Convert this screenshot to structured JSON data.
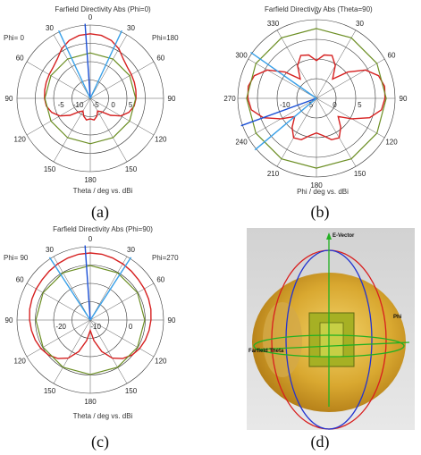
{
  "chart_data": [
    {
      "type": "polar",
      "panel": "a",
      "title": "Farfield Directivity Abs (Phi=0)",
      "axis_label": "Theta / deg vs. dBi",
      "left_label": "Phi=  0",
      "right_label": "Phi=180",
      "angle_labels": [
        "0",
        "30",
        "60",
        "90",
        "120",
        "150",
        "180",
        "150",
        "120",
        "90",
        "60",
        "30"
      ],
      "radial_labels": [
        "-5",
        "-10",
        "-5",
        "0",
        "5"
      ],
      "series": [
        {
          "color": "#d62020",
          "theta_deg": [
            0,
            10,
            20,
            30,
            40,
            50,
            60,
            70,
            80,
            90,
            100,
            110,
            120,
            130,
            140,
            150,
            160,
            170,
            180
          ],
          "values": [
            7.0,
            6.8,
            6.0,
            4.5,
            2.5,
            1.5,
            1.2,
            1.0,
            0.8,
            0.6,
            0.2,
            -1.0,
            -3.0,
            -6.0,
            -9.0,
            -10.0,
            -8.5,
            -7.5,
            -8.0
          ]
        },
        {
          "color": "#6b8e23",
          "theta_deg": [
            0,
            30,
            60,
            90,
            120,
            150,
            180,
            210,
            240,
            270,
            300,
            330,
            360
          ],
          "values": [
            0.5,
            0.5,
            0.5,
            0.5,
            0.5,
            0.5,
            0.5,
            0.5,
            0.5,
            0.5,
            0.5,
            0.5,
            0.5
          ]
        }
      ],
      "markers": [
        {
          "color": "#1a4fd6",
          "angle_deg": -4
        },
        {
          "color": "#39a0e8",
          "angle_deg": -25
        },
        {
          "color": "#39a0e8",
          "angle_deg": 25
        }
      ]
    },
    {
      "type": "polar",
      "panel": "b",
      "title": "Farfield Directivity Abs (Theta=90)",
      "axis_label": "Phi / deg vs. dBi",
      "angle_labels": [
        "0",
        "30",
        "60",
        "90",
        "120",
        "150",
        "180",
        "210",
        "240",
        "270",
        "300",
        "330"
      ],
      "radial_labels": [
        "-10",
        "-5",
        "0",
        "5"
      ],
      "series": [
        {
          "color": "#d62020",
          "theta_deg": [
            0,
            10,
            20,
            30,
            40,
            50,
            60,
            70,
            80,
            90,
            100,
            110,
            120,
            130,
            140,
            150,
            160,
            170,
            180
          ],
          "values": [
            -3.0,
            -1.0,
            -0.5,
            -3.0,
            -7.0,
            -2.0,
            3.0,
            6.0,
            7.0,
            6.8,
            6.0,
            3.0,
            -2.0,
            -6.0,
            -3.0,
            -0.5,
            -1.0,
            -3.0,
            -4.0
          ]
        },
        {
          "color": "#6b8e23",
          "theta_deg": [
            0,
            30,
            60,
            90,
            120,
            150,
            180,
            210,
            240,
            270,
            300,
            330,
            360
          ],
          "values": [
            7.2,
            7.2,
            7.2,
            7.2,
            7.2,
            7.2,
            7.2,
            7.2,
            7.2,
            7.2,
            7.2,
            7.2,
            7.2
          ]
        }
      ],
      "markers": [
        {
          "color": "#1a4fd6",
          "angle_deg": -110
        },
        {
          "color": "#39a0e8",
          "angle_deg": -55
        },
        {
          "color": "#39a0e8",
          "angle_deg": -130
        }
      ]
    },
    {
      "type": "polar",
      "panel": "c",
      "title": "Farfield Directivity Abs (Phi=90)",
      "axis_label": "Theta / deg vs. dBi",
      "left_label": "Phi= 90",
      "right_label": "Phi=270",
      "angle_labels": [
        "0",
        "30",
        "60",
        "90",
        "120",
        "150",
        "180",
        "150",
        "120",
        "90",
        "60",
        "30"
      ],
      "radial_labels": [
        "-20",
        "-10",
        "0"
      ],
      "series": [
        {
          "color": "#d62020",
          "theta_deg": [
            0,
            10,
            20,
            30,
            40,
            50,
            60,
            70,
            80,
            90,
            100,
            110,
            120,
            130,
            140,
            150,
            160,
            170,
            180
          ],
          "values": [
            7.0,
            6.9,
            6.5,
            6.0,
            5.5,
            5.0,
            4.8,
            4.6,
            4.4,
            4.0,
            3.5,
            3.0,
            2.2,
            1.0,
            -1.0,
            -4.0,
            -9.0,
            -15.0,
            -20.0
          ]
        },
        {
          "color": "#6b8e23",
          "theta_deg": [
            0,
            30,
            60,
            90,
            120,
            150,
            180,
            210,
            240,
            270,
            300,
            330,
            360
          ],
          "values": [
            1.0,
            1.0,
            1.0,
            1.0,
            1.0,
            1.0,
            1.0,
            1.0,
            1.0,
            1.0,
            1.0,
            1.0,
            1.0
          ]
        }
      ],
      "markers": [
        {
          "color": "#1a4fd6",
          "angle_deg": -4
        },
        {
          "color": "#39a0e8",
          "angle_deg": -33
        },
        {
          "color": "#39a0e8",
          "angle_deg": 33
        }
      ]
    }
  ],
  "scene": {
    "labels": {
      "e_vector": "E-Vector",
      "phi": "Phi",
      "theta": "Farfield Theta"
    }
  },
  "captions": [
    "(a)",
    "(b)",
    "(c)",
    "(d)"
  ]
}
